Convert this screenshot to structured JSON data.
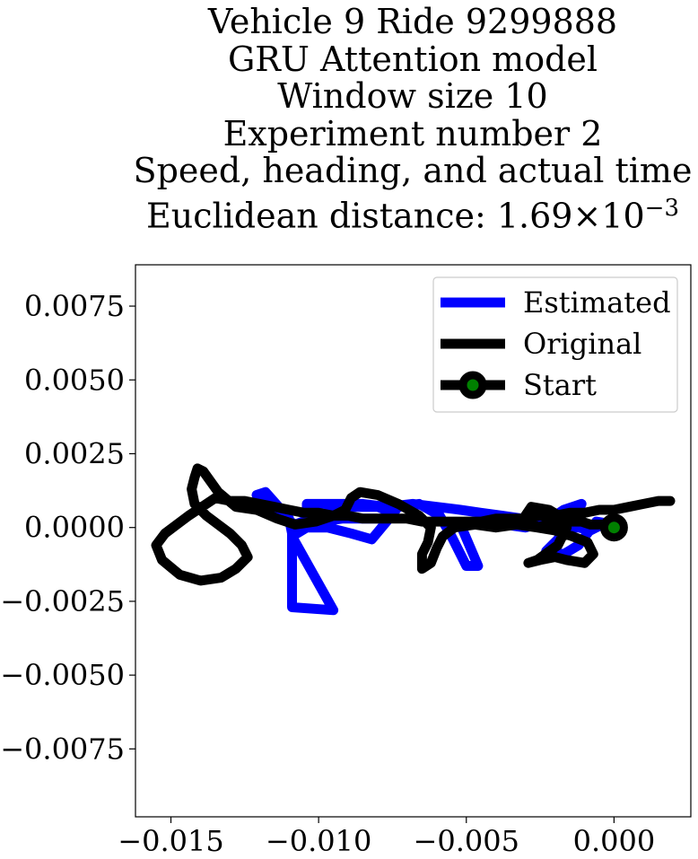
{
  "title_lines": [
    "Vehicle 9 Ride 9299888",
    "GRU Attention model",
    "Window size 10",
    "Experiment number 2",
    "Speed, heading, and actual time"
  ],
  "distance_label": {
    "prefix": "Euclidean distance: 1.69",
    "times": "×",
    "base": "10",
    "exponent": "−3"
  },
  "colors": {
    "estimated": "#0000ff",
    "original": "#000000",
    "start_marker": "#008000"
  },
  "chart_data": {
    "type": "line",
    "title": "Vehicle 9 Ride 9299888 / GRU Attention model / Window size 10 / Experiment number 2 / Speed, heading, and actual time / Euclidean distance: 1.69×10^-3",
    "xlabel": "",
    "ylabel": "",
    "xlim": [
      -0.0162,
      0.0026
    ],
    "ylim": [
      -0.0098,
      0.0089
    ],
    "xticks": [
      -0.015,
      -0.01,
      -0.005,
      0.0
    ],
    "xtick_labels": [
      "−0.015",
      "−0.010",
      "−0.005",
      "0.000"
    ],
    "yticks": [
      0.0075,
      0.005,
      0.0025,
      0.0,
      -0.0025,
      -0.005,
      -0.0075
    ],
    "ytick_labels": [
      "0.0075",
      "0.0050",
      "0.0025",
      "0.0000",
      "−0.0025",
      "−0.0050",
      "−0.0075"
    ],
    "grid": false,
    "legend": {
      "placement": "top-right",
      "entries": [
        "Estimated",
        "Original",
        "Start"
      ]
    },
    "series": [
      {
        "name": "Estimated",
        "color": "#0000ff",
        "x": [
          0.0,
          -0.0006,
          -0.0012,
          -0.0017,
          -0.0023,
          -0.0019,
          -0.0015,
          -0.0011,
          -0.0017,
          -0.0023,
          -0.003,
          -0.0037,
          -0.0045,
          -0.0052,
          -0.0046,
          -0.005,
          -0.0055,
          -0.0059,
          -0.0066,
          -0.0073,
          -0.0077,
          -0.0082,
          -0.0089,
          -0.0097,
          -0.0104,
          -0.0109,
          -0.0095,
          -0.0109,
          -0.0109,
          -0.011,
          -0.0118,
          -0.0121,
          -0.0114,
          -0.0108,
          -0.01,
          -0.009,
          -0.008,
          -0.0075,
          -0.0078,
          -0.0085,
          -0.0092,
          -0.0099,
          -0.0104,
          -0.0104,
          -0.0095,
          -0.0085,
          -0.0077,
          -0.0068,
          -0.006,
          -0.0052,
          -0.0045,
          -0.0038,
          -0.0031,
          -0.0026,
          -0.002,
          -0.0016,
          -0.0012,
          -0.0008,
          -0.0004
        ],
        "y": [
          0.0001,
          0.0002,
          -0.0006,
          -0.0009,
          -0.0008,
          -0.0004,
          0.0,
          0.0008,
          0.0006,
          0.0002,
          0.0,
          0.0001,
          0.0001,
          0.0001,
          -0.0013,
          -0.0013,
          -0.0003,
          0.0004,
          0.0008,
          0.0007,
          0.0002,
          -0.0004,
          -0.0002,
          0.0,
          0.0,
          -0.0003,
          -0.0028,
          -0.0027,
          -0.0002,
          0.0003,
          0.0012,
          0.0011,
          0.0005,
          0.0001,
          0.0004,
          0.0007,
          0.0007,
          0.0005,
          0.0003,
          0.0003,
          0.0003,
          0.0002,
          0.0,
          0.0008,
          0.0008,
          0.0008,
          0.0007,
          0.0008,
          0.0007,
          0.0006,
          0.0005,
          0.0004,
          0.0003,
          0.0002,
          0.0001,
          0.0,
          0.0,
          -0.0001,
          0.0001
        ]
      },
      {
        "name": "Original",
        "color": "#000000",
        "x": [
          0.0019,
          0.0015,
          0.001,
          0.0005,
          0.0,
          -0.0005,
          -0.001,
          -0.0015,
          -0.002,
          -0.0025,
          -0.003,
          -0.0035,
          -0.004,
          -0.0045,
          -0.005,
          -0.0055,
          -0.006,
          -0.0065,
          -0.007,
          -0.0075,
          -0.008,
          -0.0085,
          -0.009,
          -0.0095,
          -0.01,
          -0.0105,
          -0.011,
          -0.0115,
          -0.012,
          -0.0125,
          -0.013,
          -0.0135,
          -0.0138,
          -0.0141,
          -0.0144,
          -0.0148,
          -0.0152,
          -0.0155,
          -0.0153,
          -0.0147,
          -0.014,
          -0.0133,
          -0.0128,
          -0.0124,
          -0.0126,
          -0.013,
          -0.0134,
          -0.0138,
          -0.0142,
          -0.0143,
          -0.0142,
          -0.0141,
          -0.0139,
          -0.0134,
          -0.0128,
          -0.0121,
          -0.0114,
          -0.0108,
          -0.0101,
          -0.0095,
          -0.0091,
          -0.0089,
          -0.0086,
          -0.008,
          -0.0073,
          -0.0066,
          -0.0062,
          -0.0063,
          -0.0065,
          -0.0065,
          -0.0062,
          -0.006,
          -0.0058,
          -0.0054,
          -0.0047,
          -0.004,
          -0.0033,
          -0.0026,
          -0.002,
          -0.0016,
          -0.0019,
          -0.0026,
          -0.0029,
          -0.0025,
          -0.002,
          -0.0016,
          -0.001,
          -0.0007,
          -0.0009,
          -0.0014,
          -0.002,
          -0.0026,
          -0.003,
          -0.0028,
          -0.0022,
          -0.0017,
          -0.0014,
          -0.0011,
          -0.0008,
          -0.0004,
          0.0
        ],
        "y": [
          0.0009,
          0.0009,
          0.0008,
          0.0007,
          0.0006,
          0.0006,
          0.0005,
          0.0005,
          0.0004,
          0.0004,
          0.0003,
          0.0003,
          0.0003,
          0.0002,
          0.0002,
          0.0002,
          0.0002,
          0.0002,
          0.0003,
          0.0003,
          0.0003,
          0.0003,
          0.0004,
          0.0004,
          0.0005,
          0.0005,
          0.0006,
          0.0007,
          0.0008,
          0.0009,
          0.0009,
          0.001,
          0.0008,
          0.0006,
          0.0004,
          0.0001,
          -0.0002,
          -0.0006,
          -0.0011,
          -0.0016,
          -0.0018,
          -0.0017,
          -0.0014,
          -0.001,
          -0.0006,
          -0.0002,
          0.0001,
          0.0004,
          0.0008,
          0.0013,
          0.0017,
          0.002,
          0.0019,
          0.0012,
          0.0007,
          0.0006,
          0.0003,
          0.0001,
          0.0002,
          0.0004,
          0.0006,
          0.001,
          0.0012,
          0.0011,
          0.0008,
          0.0004,
          0.0,
          -0.0005,
          -0.0009,
          -0.0014,
          -0.0012,
          -0.0007,
          -0.0003,
          0.0,
          0.0001,
          0.0,
          0.0001,
          0.0,
          0.0002,
          0.0,
          -0.0006,
          -0.0011,
          -0.0012,
          -0.0011,
          -0.001,
          -0.0011,
          -0.0012,
          -0.0009,
          -0.0005,
          -0.0003,
          -0.0001,
          0.0,
          0.0004,
          0.0007,
          0.0006,
          0.0003,
          0.0002,
          0.0002,
          0.0001,
          0.0001,
          0.0
        ]
      }
    ],
    "start": {
      "name": "Start",
      "x": 0.0,
      "y": 0.0,
      "marker_edge": "#000000",
      "marker_face": "#008000"
    }
  }
}
